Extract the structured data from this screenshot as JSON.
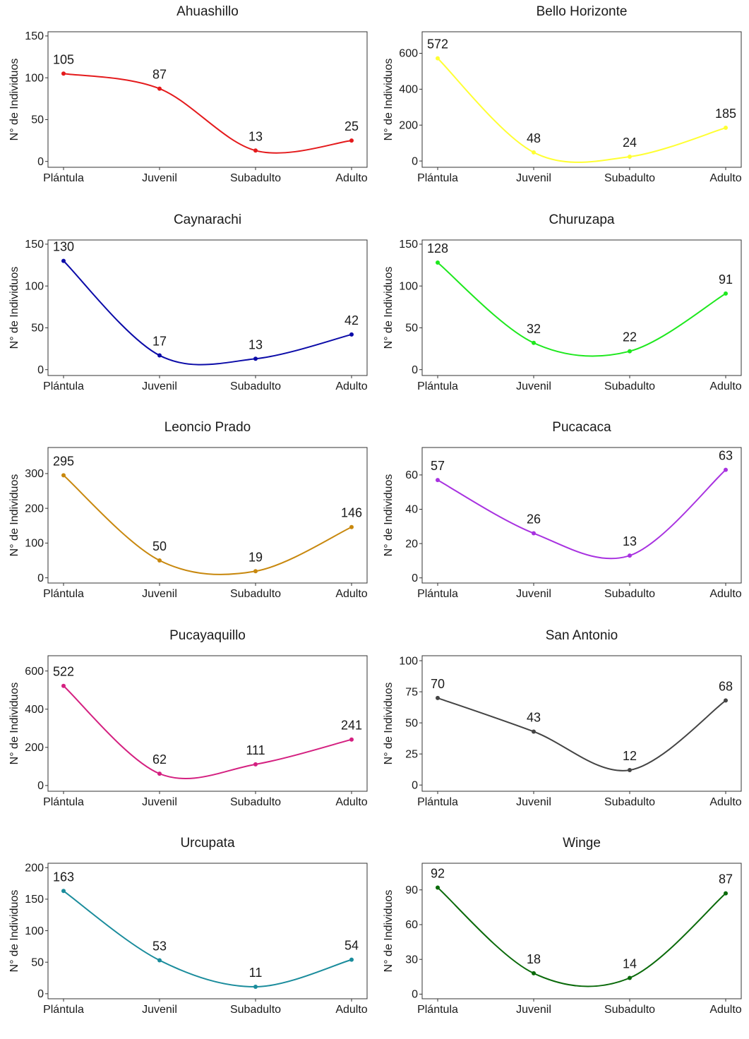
{
  "chart_data": [
    {
      "type": "line",
      "title": "Ahuashillo",
      "ylabel": "N° de Individuos",
      "categories": [
        "Plántula",
        "Juvenil",
        "Subadulto",
        "Adulto"
      ],
      "values": [
        105,
        87,
        13,
        25
      ],
      "ylim": [
        -7,
        155
      ],
      "yticks": [
        0,
        50,
        100,
        150
      ],
      "color": "#e41a1c"
    },
    {
      "type": "line",
      "title": "Bello Horizonte",
      "ylabel": "N° de Individuos",
      "categories": [
        "Plántula",
        "Juvenil",
        "Subadulto",
        "Adulto"
      ],
      "values": [
        572,
        48,
        24,
        185
      ],
      "ylim": [
        -35,
        720
      ],
      "yticks": [
        0,
        200,
        400,
        600
      ],
      "color": "#ffff33"
    },
    {
      "type": "line",
      "title": "Caynarachi",
      "ylabel": "N° de Individuos",
      "categories": [
        "Plántula",
        "Juvenil",
        "Subadulto",
        "Adulto"
      ],
      "values": [
        130,
        17,
        13,
        42
      ],
      "ylim": [
        -7,
        155
      ],
      "yticks": [
        0,
        50,
        100,
        150
      ],
      "color": "#0b0ba8"
    },
    {
      "type": "line",
      "title": "Churuzapa",
      "ylabel": "N° de Individuos",
      "categories": [
        "Plántula",
        "Juvenil",
        "Subadulto",
        "Adulto"
      ],
      "values": [
        128,
        32,
        22,
        91
      ],
      "ylim": [
        -7,
        155
      ],
      "yticks": [
        0,
        50,
        100,
        150
      ],
      "color": "#1ee81e"
    },
    {
      "type": "line",
      "title": "Leoncio Prado",
      "ylabel": "N° de Individuos",
      "categories": [
        "Plántula",
        "Juvenil",
        "Subadulto",
        "Adulto"
      ],
      "values": [
        295,
        50,
        19,
        146
      ],
      "ylim": [
        -15,
        375
      ],
      "yticks": [
        0,
        100,
        200,
        300
      ],
      "color": "#c8880e"
    },
    {
      "type": "line",
      "title": "Pucacaca",
      "ylabel": "N° de Individuos",
      "categories": [
        "Plántula",
        "Juvenil",
        "Subadulto",
        "Adulto"
      ],
      "values": [
        57,
        26,
        13,
        63
      ],
      "ylim": [
        -3,
        76
      ],
      "yticks": [
        0,
        20,
        40,
        60
      ],
      "color": "#a832e0"
    },
    {
      "type": "line",
      "title": "Pucayaquillo",
      "ylabel": "N° de Individuos",
      "categories": [
        "Plántula",
        "Juvenil",
        "Subadulto",
        "Adulto"
      ],
      "values": [
        522,
        62,
        111,
        241
      ],
      "ylim": [
        -30,
        680
      ],
      "yticks": [
        0,
        200,
        400,
        600
      ],
      "color": "#d42080"
    },
    {
      "type": "line",
      "title": "San Antonio",
      "ylabel": "N° de Individuos",
      "categories": [
        "Plántula",
        "Juvenil",
        "Subadulto",
        "Adulto"
      ],
      "values": [
        70,
        43,
        12,
        68
      ],
      "ylim": [
        -5,
        104
      ],
      "yticks": [
        0,
        25,
        50,
        75,
        100
      ],
      "color": "#444444"
    },
    {
      "type": "line",
      "title": "Urcupata",
      "ylabel": "N° de Individuos",
      "categories": [
        "Plántula",
        "Juvenil",
        "Subadulto",
        "Adulto"
      ],
      "values": [
        163,
        53,
        11,
        54
      ],
      "ylim": [
        -8,
        207
      ],
      "yticks": [
        0,
        50,
        100,
        150,
        200
      ],
      "color": "#1a8c9c"
    },
    {
      "type": "line",
      "title": "Winge",
      "ylabel": "N° de Individuos",
      "categories": [
        "Plántula",
        "Juvenil",
        "Subadulto",
        "Adulto"
      ],
      "values": [
        92,
        18,
        14,
        87
      ],
      "ylim": [
        -4,
        113
      ],
      "yticks": [
        0,
        30,
        60,
        90
      ],
      "color": "#0a6a0a"
    }
  ]
}
